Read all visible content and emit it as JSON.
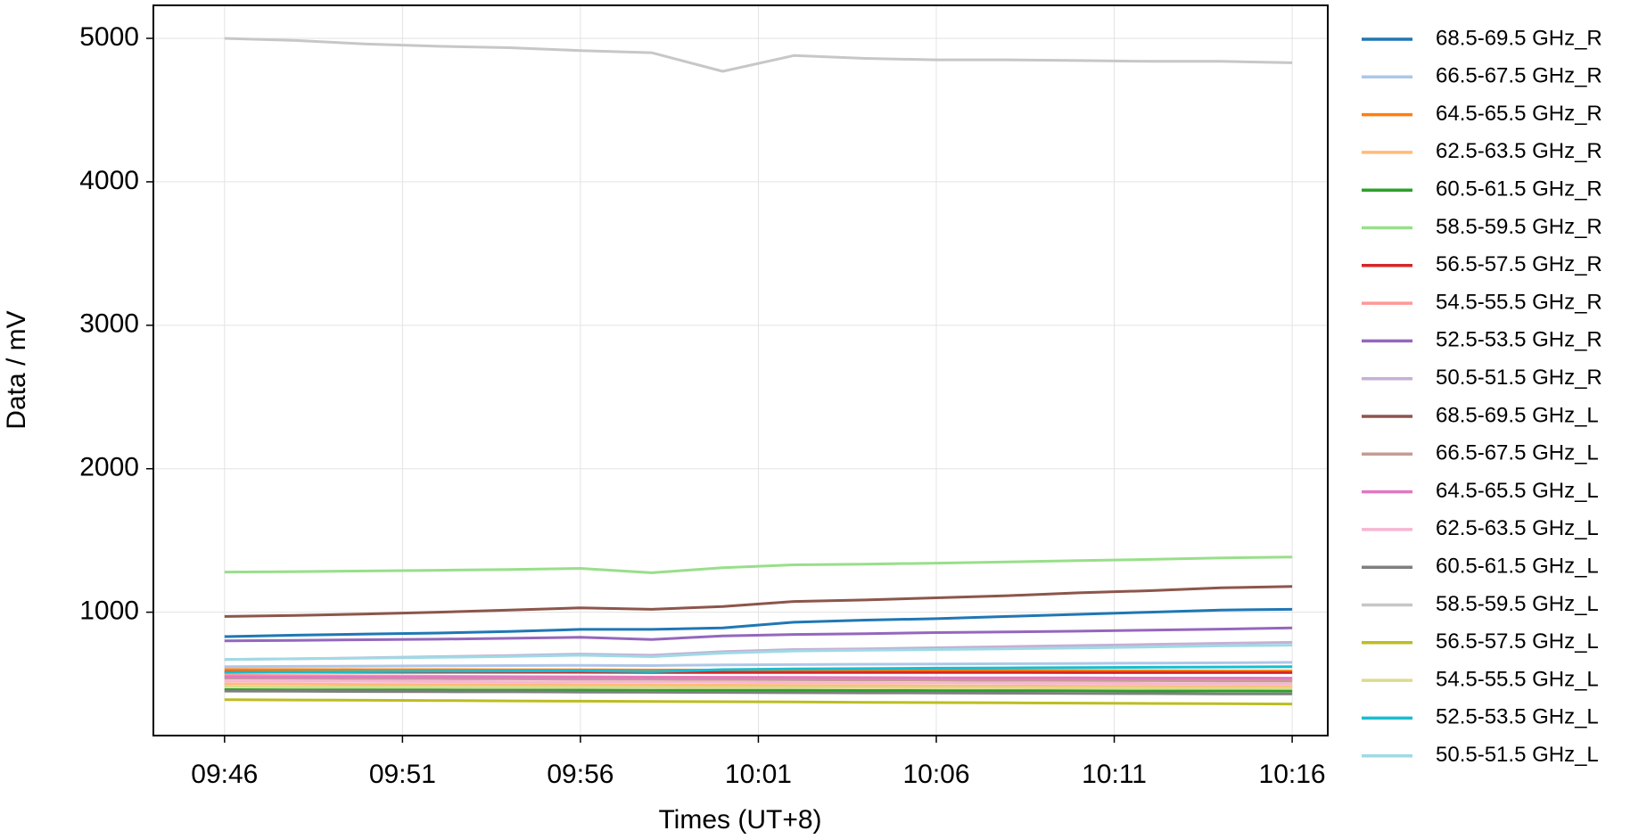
{
  "chart_data": {
    "type": "line",
    "xlabel": "Times (UT+8)",
    "ylabel": "Data / mV",
    "grid": true,
    "legend": "outside right",
    "x": [
      "09:46",
      "09:48",
      "09:50",
      "09:52",
      "09:54",
      "09:56",
      "09:58",
      "10:00",
      "10:02",
      "10:04",
      "10:06",
      "10:08",
      "10:10",
      "10:12",
      "10:14",
      "10:16"
    ],
    "xlim": [
      "09:44",
      "10:17"
    ],
    "xticks": [
      "09:46",
      "09:51",
      "09:56",
      "10:01",
      "10:06",
      "10:11",
      "10:16"
    ],
    "ylim": [
      140,
      5230
    ],
    "yticks": [
      1000,
      2000,
      3000,
      4000,
      5000
    ],
    "series": [
      {
        "name": "68.5-69.5 GHz_R",
        "color": "#1f77b4",
        "values": [
          830,
          840,
          848,
          855,
          865,
          880,
          880,
          890,
          930,
          945,
          955,
          970,
          985,
          1000,
          1015,
          1020
        ]
      },
      {
        "name": "66.5-67.5 GHz_R",
        "color": "#aec7e8",
        "values": [
          620,
          622,
          624,
          626,
          628,
          630,
          628,
          633,
          635,
          637,
          639,
          641,
          643,
          645,
          647,
          650
        ]
      },
      {
        "name": "64.5-65.5 GHz_R",
        "color": "#ff7f0e",
        "values": [
          600,
          600,
          599,
          599,
          598,
          598,
          597,
          596,
          595,
          594,
          594,
          593,
          592,
          591,
          590,
          590
        ]
      },
      {
        "name": "62.5-63.5 GHz_R",
        "color": "#ffbb78",
        "values": [
          500,
          499,
          497,
          496,
          495,
          493,
          492,
          491,
          489,
          488,
          487,
          485,
          484,
          483,
          481,
          480
        ]
      },
      {
        "name": "60.5-61.5 GHz_R",
        "color": "#2ca02c",
        "values": [
          460,
          459,
          459,
          458,
          457,
          457,
          456,
          455,
          455,
          454,
          453,
          453,
          452,
          451,
          451,
          450
        ]
      },
      {
        "name": "58.5-59.5 GHz_R",
        "color": "#98df8a",
        "values": [
          1280,
          1283,
          1287,
          1292,
          1298,
          1305,
          1275,
          1310,
          1330,
          1335,
          1342,
          1350,
          1360,
          1368,
          1378,
          1385
        ]
      },
      {
        "name": "56.5-57.5 GHz_R",
        "color": "#d62728",
        "values": [
          582,
          582,
          581,
          581,
          581,
          581,
          580,
          580,
          580,
          580,
          580,
          580,
          579,
          579,
          579,
          579
        ]
      },
      {
        "name": "54.5-55.5 GHz_R",
        "color": "#ff9896",
        "values": [
          560,
          558,
          556,
          554,
          552,
          550,
          548,
          546,
          544,
          542,
          540,
          538,
          536,
          534,
          532,
          530
        ]
      },
      {
        "name": "52.5-53.5 GHz_R",
        "color": "#9467bd",
        "values": [
          800,
          803,
          808,
          812,
          818,
          825,
          810,
          835,
          845,
          850,
          858,
          862,
          868,
          875,
          882,
          890
        ]
      },
      {
        "name": "50.5-51.5 GHz_R",
        "color": "#c5b0d5",
        "values": [
          670,
          675,
          682,
          690,
          698,
          708,
          700,
          725,
          740,
          745,
          752,
          760,
          768,
          775,
          783,
          790
        ]
      },
      {
        "name": "68.5-69.5 GHz_L",
        "color": "#8c564b",
        "values": [
          970,
          978,
          988,
          1000,
          1015,
          1030,
          1020,
          1040,
          1075,
          1085,
          1100,
          1115,
          1135,
          1150,
          1170,
          1180
        ]
      },
      {
        "name": "66.5-67.5 GHz_L",
        "color": "#c49c94",
        "values": [
          540,
          539,
          537,
          536,
          535,
          533,
          532,
          531,
          529,
          528,
          527,
          525,
          524,
          523,
          521,
          520
        ]
      },
      {
        "name": "64.5-65.5 GHz_L",
        "color": "#e377c2",
        "values": [
          550,
          549,
          549,
          548,
          547,
          547,
          546,
          545,
          545,
          544,
          543,
          543,
          542,
          541,
          541,
          540
        ]
      },
      {
        "name": "62.5-63.5 GHz_L",
        "color": "#f7b6d2",
        "values": [
          520,
          519,
          517,
          516,
          515,
          513,
          512,
          511,
          509,
          508,
          507,
          505,
          504,
          503,
          501,
          500
        ]
      },
      {
        "name": "60.5-61.5 GHz_L",
        "color": "#7f7f7f",
        "values": [
          450,
          449,
          447,
          446,
          445,
          443,
          442,
          441,
          439,
          438,
          437,
          435,
          434,
          433,
          431,
          430
        ]
      },
      {
        "name": "58.5-59.5 GHz_L",
        "color": "#c7c7c7",
        "values": [
          5000,
          4985,
          4960,
          4945,
          4935,
          4915,
          4900,
          4770,
          4880,
          4860,
          4850,
          4850,
          4845,
          4840,
          4840,
          4830
        ]
      },
      {
        "name": "56.5-57.5 GHz_L",
        "color": "#bcbd22",
        "values": [
          390,
          388,
          386,
          384,
          382,
          380,
          378,
          376,
          374,
          372,
          370,
          368,
          366,
          364,
          362,
          360
        ]
      },
      {
        "name": "54.5-55.5 GHz_L",
        "color": "#dbdb8d",
        "values": [
          480,
          479,
          479,
          478,
          477,
          477,
          476,
          475,
          475,
          474,
          473,
          473,
          472,
          471,
          471,
          470
        ]
      },
      {
        "name": "52.5-53.5 GHz_L",
        "color": "#17becf",
        "values": [
          580,
          582,
          585,
          588,
          590,
          592,
          585,
          600,
          605,
          607,
          610,
          612,
          614,
          616,
          618,
          620
        ]
      },
      {
        "name": "50.5-51.5 GHz_L",
        "color": "#9edae5",
        "values": [
          670,
          675,
          680,
          685,
          692,
          700,
          690,
          715,
          730,
          735,
          740,
          745,
          750,
          758,
          765,
          770
        ]
      }
    ]
  }
}
